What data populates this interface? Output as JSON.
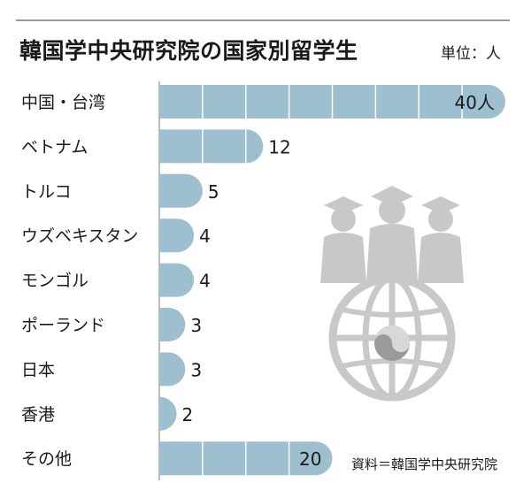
{
  "title": "韓国学中央研究院の国家別留学生",
  "unit": "単位：人",
  "source": "資料＝韓国学中央研究院",
  "colors": {
    "bar": "#9dbfcf",
    "segment_line": "#ffffff",
    "axis": "#7a7a7a",
    "illustration": "#c8c8c8"
  },
  "illustration": "graduates-globe-icon",
  "chart_data": {
    "type": "bar",
    "orientation": "horizontal",
    "categories": [
      "中国・台湾",
      "ベトナム",
      "トルコ",
      "ウズベキスタン",
      "モンゴル",
      "ポーランド",
      "日本",
      "香港",
      "その他"
    ],
    "values": [
      40,
      12,
      5,
      4,
      4,
      3,
      3,
      2,
      20
    ],
    "value_labels": [
      "40人",
      "12",
      "5",
      "4",
      "4",
      "3",
      "3",
      "2",
      "20"
    ],
    "xlim": [
      0,
      40
    ],
    "segment_step": 5
  }
}
